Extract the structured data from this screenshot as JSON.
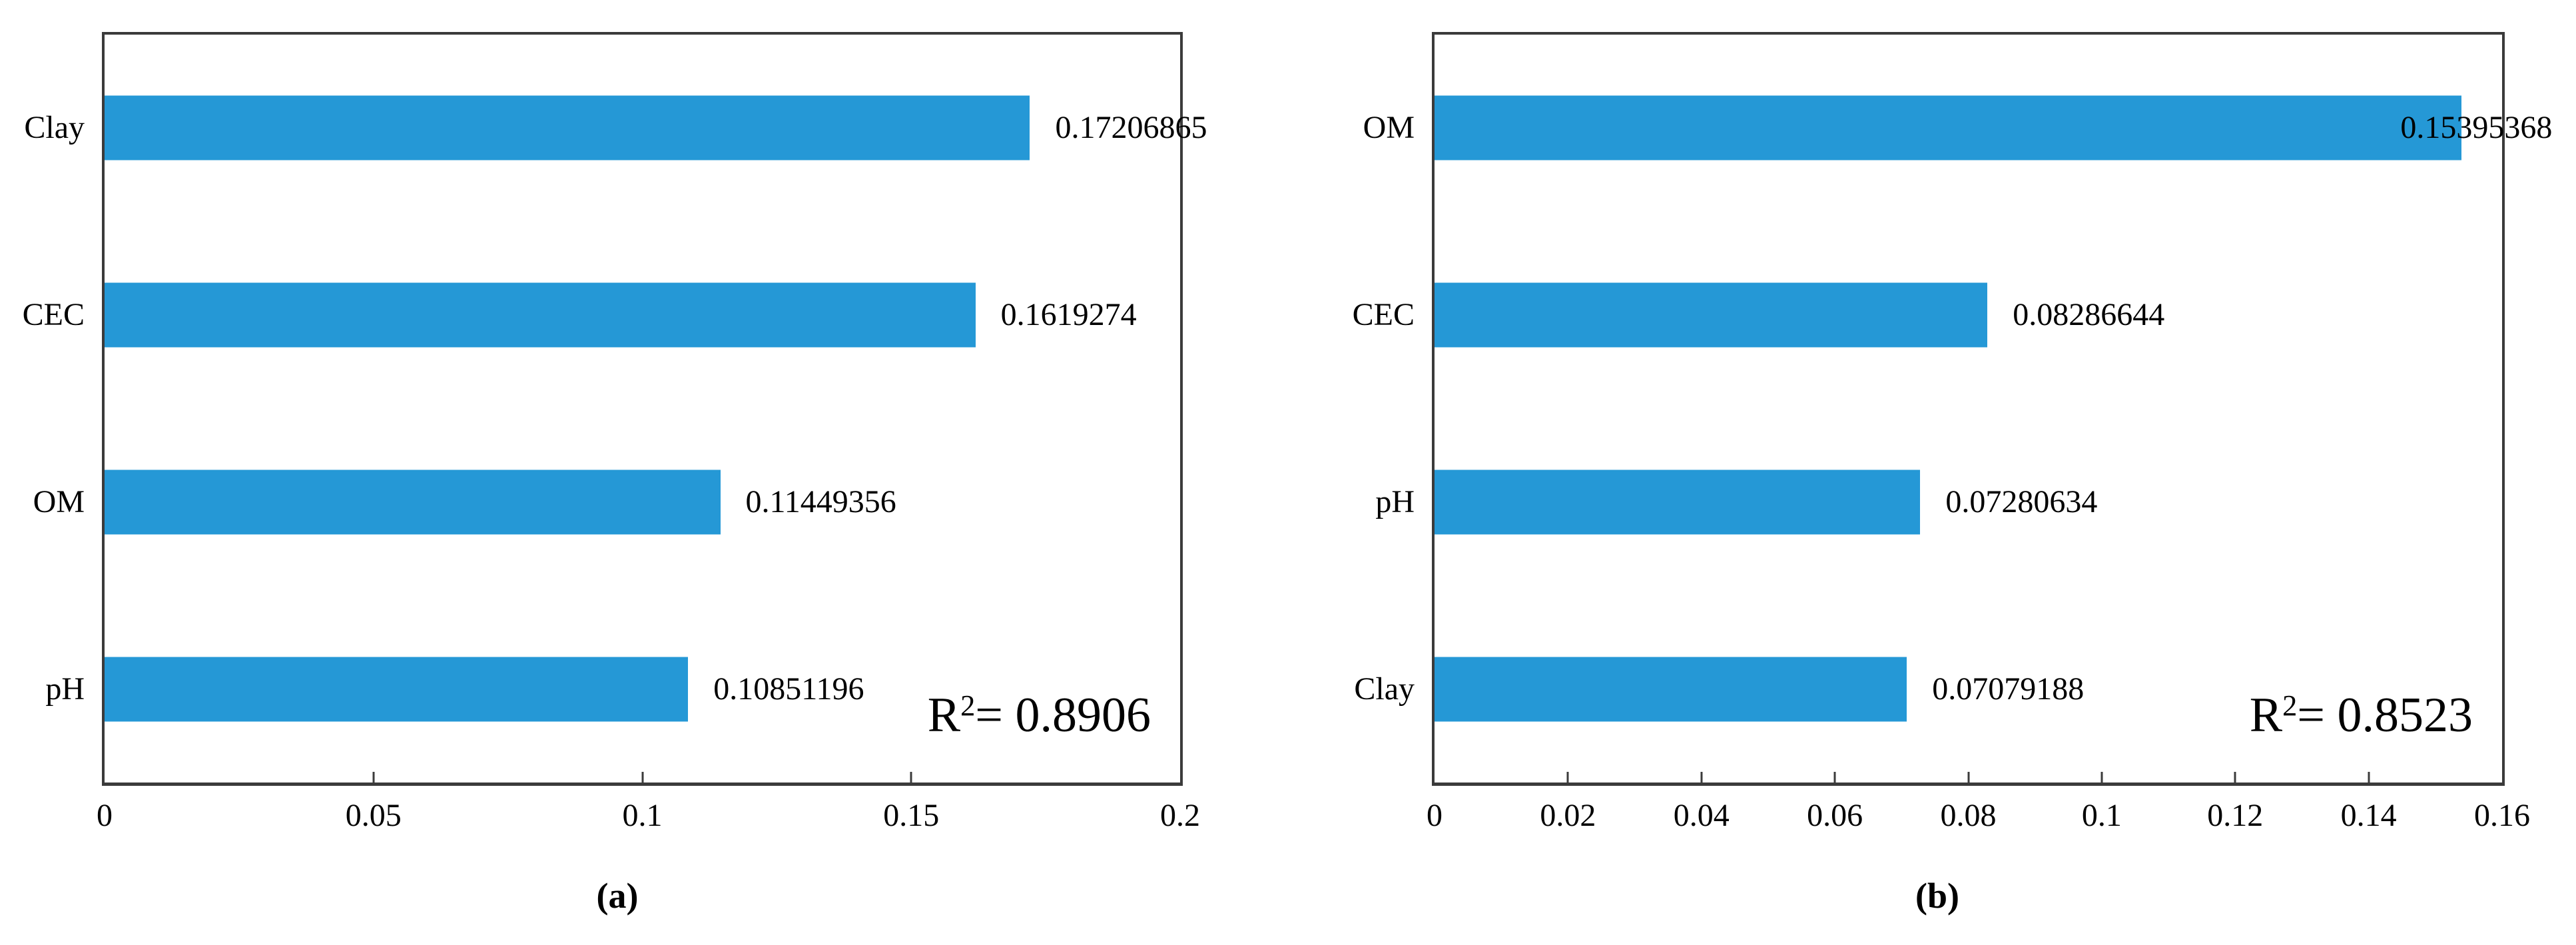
{
  "figure_style": {
    "axis_color": "#3b3b3b",
    "text_color": "#000000",
    "background": "#ffffff"
  },
  "chart_data": [
    {
      "type": "bar",
      "orientation": "horizontal",
      "panel": "a",
      "categories": [
        "Clay",
        "CEC",
        "OM",
        "pH"
      ],
      "values": [
        0.17206865,
        0.1619274,
        0.11449356,
        0.10851196
      ],
      "value_labels": [
        "0.17206865",
        "0.1619274",
        "0.11449356",
        "0.10851196"
      ],
      "xlim": [
        0,
        0.2
      ],
      "x_ticks": [
        0,
        0.05,
        0.1,
        0.15,
        0.2
      ],
      "x_tick_labels": [
        "0",
        "0.05",
        "0.1",
        "0.15",
        "0.2"
      ],
      "grid": "off",
      "bar_color": "#2598d6",
      "r2": {
        "base": "R",
        "sup": "2",
        "rest": "= 0.8906"
      },
      "caption": "(a)"
    },
    {
      "type": "bar",
      "orientation": "horizontal",
      "panel": "b",
      "categories": [
        "OM",
        "CEC",
        "pH",
        "Clay"
      ],
      "values": [
        0.15395368,
        0.08286644,
        0.07280634,
        0.07079188
      ],
      "value_labels": [
        "0.15395368",
        "0.08286644",
        "0.07280634",
        "0.07079188"
      ],
      "xlim": [
        0,
        0.16
      ],
      "x_ticks": [
        0,
        0.02,
        0.04,
        0.06,
        0.08,
        0.1,
        0.12,
        0.14,
        0.16
      ],
      "x_tick_labels": [
        "0",
        "0.02",
        "0.04",
        "0.06",
        "0.08",
        "0.1",
        "0.12",
        "0.14",
        "0.16"
      ],
      "grid": "off",
      "bar_color": "#2598d6",
      "r2": {
        "base": "R",
        "sup": "2",
        "rest": "= 0.8523"
      },
      "caption": "(b)"
    }
  ]
}
